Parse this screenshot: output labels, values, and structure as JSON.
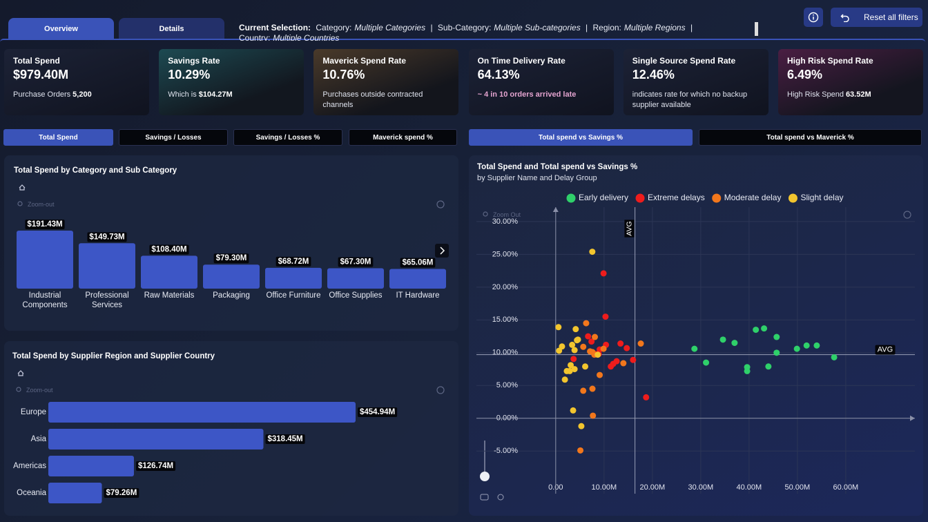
{
  "tabs": [
    "Overview",
    "Details"
  ],
  "selection": {
    "label": "Current Selection:",
    "separator": "|",
    "filters": [
      {
        "field": "Category:",
        "value": "Multiple Categories"
      },
      {
        "field": "Sub-Category:",
        "value": "Multiple Sub-categories"
      },
      {
        "field": "Region:",
        "value": "Multiple Regions"
      },
      {
        "field": "Country:",
        "value": "Multiple Countries"
      }
    ]
  },
  "reset_button": "Reset all filters",
  "kpis": [
    {
      "title": "Total Spend",
      "value": "$979.40M",
      "note": "Purchase Orders",
      "note_value": "5,200"
    },
    {
      "title": "Savings Rate",
      "value": "10.29%",
      "note": "Which is",
      "note_value": "$104.27M"
    },
    {
      "title": "Maverick Spend Rate",
      "value": "10.76%",
      "note": "Purchases outside contracted channels"
    },
    {
      "title": "On Time Delivery Rate",
      "value": "64.13%",
      "note": "~ 4 in 10 orders arrived late"
    },
    {
      "title": "Single Source Spend Rate",
      "value": "12.46%",
      "note": "indicates rate for which no backup supplier available"
    },
    {
      "title": "High Risk Spend Rate",
      "value": "6.49%",
      "note": "High Risk Spend",
      "note_value": "63.52M"
    }
  ],
  "measure_tabs": [
    "Total Spend",
    "Savings / Losses",
    "Savings / Losses %",
    "Maverick spend %"
  ],
  "chart_tabs": [
    "Total spend vs Savings %",
    "Total spend vs Maverick %"
  ],
  "chart_data": [
    {
      "type": "bar",
      "title": "Total Spend by Category and Sub Category",
      "zoom_label": "Zoom-out",
      "categories": [
        "Industrial Components",
        "Professional Services",
        "Raw Materials",
        "Packaging",
        "Office Furniture",
        "Office Supplies",
        "IT Hardware"
      ],
      "values": [
        191.43,
        149.73,
        108.4,
        79.3,
        68.72,
        67.3,
        65.06
      ],
      "value_labels": [
        "$191.43M",
        "$149.73M",
        "$108.40M",
        "$79.30M",
        "$68.72M",
        "$67.30M",
        "$65.06M"
      ],
      "color": "#3d56c6"
    },
    {
      "type": "hbar",
      "title": "Total Spend by Supplier Region and Supplier Country",
      "zoom_label": "Zoom-out",
      "categories": [
        "Europe",
        "Asia",
        "Americas",
        "Oceania"
      ],
      "values": [
        454.94,
        318.45,
        126.74,
        79.26
      ],
      "value_labels": [
        "$454.94M",
        "$318.45M",
        "$126.74M",
        "$79.26M"
      ],
      "color": "#3d56c6"
    },
    {
      "type": "scatter",
      "title": "Total Spend and Total spend vs Savings %",
      "subtitle": "by Supplier Name and Delay Group",
      "zoom_label": "Zoom Out",
      "xlim": [
        -16.4,
        74.3
      ],
      "ylim": [
        -11.5,
        32.2
      ],
      "xticks": [
        {
          "value": 0,
          "label": "0.00"
        },
        {
          "value": 10,
          "label": "10.00M"
        },
        {
          "value": 20,
          "label": "20.00M"
        },
        {
          "value": 30,
          "label": "30.00M"
        },
        {
          "value": 40,
          "label": "40.00M"
        },
        {
          "value": 50,
          "label": "50.00M"
        },
        {
          "value": 60,
          "label": "60.00M"
        }
      ],
      "yticks": [
        {
          "value": -5,
          "label": "-5.00%"
        },
        {
          "value": 0,
          "label": "0.00%"
        },
        {
          "value": 5,
          "label": "5.00%"
        },
        {
          "value": 10,
          "label": "10.00%"
        },
        {
          "value": 15,
          "label": "15.00%"
        },
        {
          "value": 20,
          "label": "20.00%"
        },
        {
          "value": 25,
          "label": "25.00%"
        },
        {
          "value": 30,
          "label": "30.00%"
        }
      ],
      "grid": true,
      "reference_lines": [
        {
          "axis": "x",
          "value": 16.4,
          "label": "AVG"
        },
        {
          "axis": "y",
          "value": 9.7,
          "label": "AVG"
        }
      ],
      "series": [
        {
          "name": "Early delivery",
          "color": "#2fd06a",
          "x": [
            28.7,
            31.1,
            34.6,
            37,
            39.6,
            39.6,
            41.4,
            43.1,
            44,
            45.7,
            45.7,
            49.9,
            51.9,
            54,
            57.6
          ],
          "values": [
            10.6,
            8.5,
            12.0,
            11.5,
            7.8,
            7.2,
            13.5,
            13.7,
            7.9,
            12.4,
            10.0,
            10.6,
            11.1,
            11.1,
            9.3
          ]
        },
        {
          "name": "Extreme delays",
          "color": "#ee1c1c",
          "x": [
            9.9,
            10.3,
            6.7,
            7.4,
            10.4,
            9.1,
            8.9,
            13.4,
            14.7,
            11.4,
            11.9,
            12.6,
            16,
            3.7,
            18.7,
            8.3
          ],
          "values": [
            22.1,
            15.5,
            12.5,
            11.7,
            11.2,
            10.5,
            9.8,
            11.4,
            10.7,
            7.9,
            8.3,
            8.7,
            8.9,
            9.05,
            3.2,
            9.8
          ]
        },
        {
          "name": "Moderate delay",
          "color": "#f2771c",
          "x": [
            6.3,
            8.1,
            5.7,
            7.1,
            8,
            17.6,
            14,
            9.1,
            5.7,
            7.6,
            7.7,
            5.1,
            9.9,
            7.6
          ],
          "values": [
            14.5,
            12.4,
            10.9,
            10.2,
            9.7,
            11.4,
            8.4,
            6.6,
            4.2,
            4.5,
            0.4,
            -4.9,
            10.6,
            10.1
          ]
        },
        {
          "name": "Slight delay",
          "color": "#f2c52e",
          "x": [
            7.57,
            0.57,
            4.14,
            4.4,
            1.3,
            0.7,
            3.4,
            3.9,
            3.1,
            2.3,
            2.9,
            3.9,
            1.9,
            6.1,
            3.6,
            5.3,
            8.7,
            4.6
          ],
          "values": [
            25.4,
            13.9,
            13.6,
            11.9,
            10.95,
            10.3,
            11.2,
            10.4,
            8.1,
            7.2,
            7.2,
            7.5,
            5.9,
            7.9,
            1.2,
            -1.2,
            9.7,
            12.0
          ]
        }
      ]
    }
  ]
}
